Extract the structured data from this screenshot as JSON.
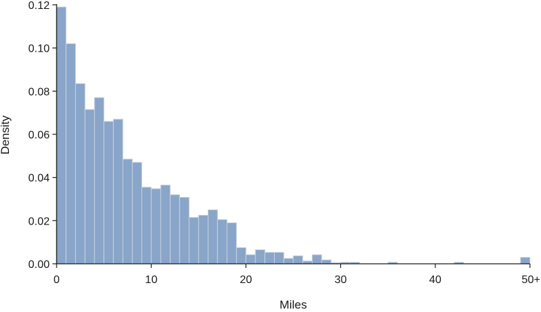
{
  "chart_data": {
    "type": "bar",
    "title": "",
    "xlabel": "Miles",
    "ylabel": "Density",
    "bin_width": 1,
    "xlim": [
      0,
      50
    ],
    "ylim": [
      0,
      0.12
    ],
    "x_ticks": [
      {
        "value": 0,
        "label": "0"
      },
      {
        "value": 10,
        "label": "10"
      },
      {
        "value": 20,
        "label": "20"
      },
      {
        "value": 30,
        "label": "30"
      },
      {
        "value": 40,
        "label": "40"
      },
      {
        "value": 50,
        "label": "50+"
      }
    ],
    "y_ticks": [
      {
        "value": 0,
        "label": "0.00"
      },
      {
        "value": 0.02,
        "label": "0.02"
      },
      {
        "value": 0.04,
        "label": "0.04"
      },
      {
        "value": 0.06,
        "label": "0.06"
      },
      {
        "value": 0.08,
        "label": "0.08"
      },
      {
        "value": 0.1,
        "label": "0.10"
      },
      {
        "value": 0.12,
        "label": "0.12"
      }
    ],
    "bins": [
      {
        "x0": 0,
        "x1": 1,
        "value": 0.119
      },
      {
        "x0": 1,
        "x1": 2,
        "value": 0.102
      },
      {
        "x0": 2,
        "x1": 3,
        "value": 0.0835
      },
      {
        "x0": 3,
        "x1": 4,
        "value": 0.0715
      },
      {
        "x0": 4,
        "x1": 5,
        "value": 0.077
      },
      {
        "x0": 5,
        "x1": 6,
        "value": 0.066
      },
      {
        "x0": 6,
        "x1": 7,
        "value": 0.067
      },
      {
        "x0": 7,
        "x1": 8,
        "value": 0.0485
      },
      {
        "x0": 8,
        "x1": 9,
        "value": 0.047
      },
      {
        "x0": 9,
        "x1": 10,
        "value": 0.0355
      },
      {
        "x0": 10,
        "x1": 11,
        "value": 0.0348
      },
      {
        "x0": 11,
        "x1": 12,
        "value": 0.0365
      },
      {
        "x0": 12,
        "x1": 13,
        "value": 0.032
      },
      {
        "x0": 13,
        "x1": 14,
        "value": 0.0308
      },
      {
        "x0": 14,
        "x1": 15,
        "value": 0.0215
      },
      {
        "x0": 15,
        "x1": 16,
        "value": 0.0225
      },
      {
        "x0": 16,
        "x1": 17,
        "value": 0.025
      },
      {
        "x0": 17,
        "x1": 18,
        "value": 0.0205
      },
      {
        "x0": 18,
        "x1": 19,
        "value": 0.019
      },
      {
        "x0": 19,
        "x1": 20,
        "value": 0.0075
      },
      {
        "x0": 20,
        "x1": 21,
        "value": 0.0042
      },
      {
        "x0": 21,
        "x1": 22,
        "value": 0.0065
      },
      {
        "x0": 22,
        "x1": 23,
        "value": 0.0053
      },
      {
        "x0": 23,
        "x1": 24,
        "value": 0.0053
      },
      {
        "x0": 24,
        "x1": 25,
        "value": 0.0025
      },
      {
        "x0": 25,
        "x1": 26,
        "value": 0.0037
      },
      {
        "x0": 26,
        "x1": 27,
        "value": 0.0013
      },
      {
        "x0": 27,
        "x1": 28,
        "value": 0.0042
      },
      {
        "x0": 28,
        "x1": 29,
        "value": 0.0018
      },
      {
        "x0": 29,
        "x1": 30,
        "value": 0.0005
      },
      {
        "x0": 30,
        "x1": 31,
        "value": 0.0007
      },
      {
        "x0": 31,
        "x1": 32,
        "value": 0.0007
      },
      {
        "x0": 35,
        "x1": 36,
        "value": 0.0007
      },
      {
        "x0": 42,
        "x1": 43,
        "value": 0.0007
      },
      {
        "x0": 49,
        "x1": 50,
        "value": 0.003
      }
    ],
    "grid": false,
    "legend": "none",
    "bar_fill": "#89a5c9",
    "bar_stroke": "#c8d3e1",
    "axis_color": "#1a1a1a"
  }
}
